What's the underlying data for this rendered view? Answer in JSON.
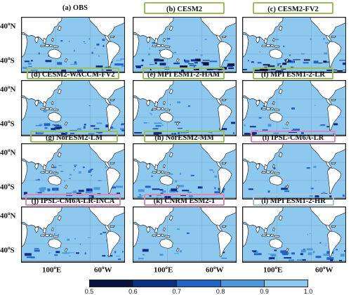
{
  "panels": [
    {
      "title": "(a) OBS",
      "frame": "none"
    },
    {
      "title": "(b) CESM2",
      "frame": "green"
    },
    {
      "title": "(c) CESM2-FV2",
      "frame": "green"
    },
    {
      "title": "(d) CESM2-WACCM-FV2",
      "frame": "green"
    },
    {
      "title": "(e) MPI ESM1-2-HAM",
      "frame": "green"
    },
    {
      "title": "(f) MPI ESM1-2-LR",
      "frame": "green"
    },
    {
      "title": "(g) NorESM2-LM",
      "frame": "green"
    },
    {
      "title": "(h) NorESM2-MM",
      "frame": "green"
    },
    {
      "title": "(i) IPSL-CM6A-LR",
      "frame": "pink"
    },
    {
      "title": "(j) IPSL-CM6A-LR-INCA",
      "frame": "pink"
    },
    {
      "title": "(k) CNRM ESM2-1",
      "frame": "pink"
    },
    {
      "title": "(l) MPI ESM1-2-HR",
      "frame": "blue"
    }
  ],
  "lat_labels": {
    "north": "40",
    "south": "40",
    "unit": "o",
    "north_hemi": "N",
    "south_hemi": "S"
  },
  "lon_labels": {
    "east": "100",
    "west": "60",
    "unit": "o",
    "east_hemi": "E",
    "west_hemi": "W"
  },
  "colorbar": {
    "ticks": [
      "0.5",
      "0.6",
      "0.7",
      "0.8",
      "0.9",
      "1.0"
    ],
    "colors": [
      "#08133f",
      "#0b2e86",
      "#1f63c6",
      "#4a97dc",
      "#8dc8ef"
    ]
  }
}
